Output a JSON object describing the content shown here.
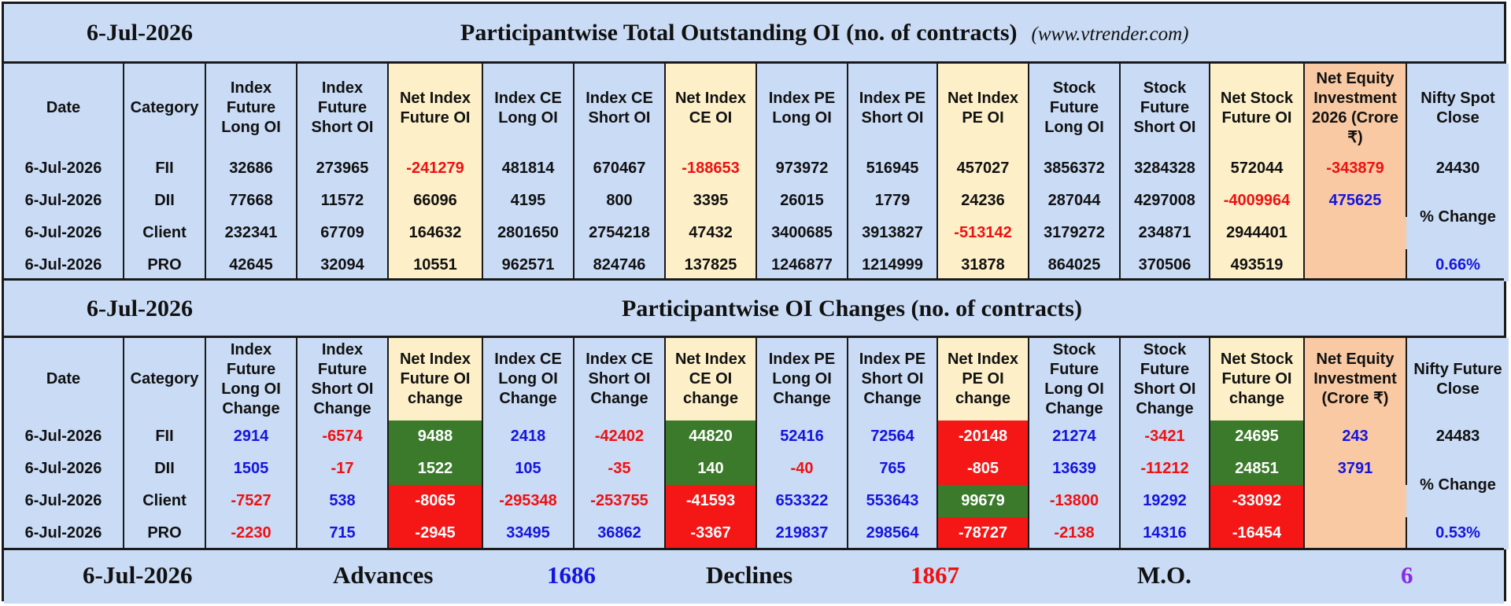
{
  "top": {
    "date": "6-Jul-2026",
    "title": "Participantwise Total Outstanding OI (no. of contracts)",
    "site": "(www.vtrender.com)",
    "headers": [
      "Date",
      "Category",
      "Index Future Long OI",
      "Index Future Short OI",
      "Net Index Future OI",
      "Index CE Long OI",
      "Index CE Short OI",
      "Net Index CE OI",
      "Index PE Long OI",
      "Index PE Short OI",
      "Net Index PE OI",
      "Stock Future Long OI",
      "Stock Future Short OI",
      "Net Stock Future OI",
      "Net Equity Investment 2026 (Crore ₹)",
      "Nifty Spot Close"
    ],
    "rows": [
      {
        "date": "6-Jul-2026",
        "category": "FII",
        "cells": [
          "32686",
          "273965",
          "-241279",
          "481814",
          "670467",
          "-188653",
          "973972",
          "516945",
          "457027",
          "3856372",
          "3284328",
          "572044"
        ],
        "equity": "-343879"
      },
      {
        "date": "6-Jul-2026",
        "category": "DII",
        "cells": [
          "77668",
          "11572",
          "66096",
          "4195",
          "800",
          "3395",
          "26015",
          "1779",
          "24236",
          "287044",
          "4297008",
          "-4009964"
        ],
        "equity": "475625"
      },
      {
        "date": "6-Jul-2026",
        "category": "Client",
        "cells": [
          "232341",
          "67709",
          "164632",
          "2801650",
          "2754218",
          "47432",
          "3400685",
          "3913827",
          "-513142",
          "3179272",
          "234871",
          "2944401"
        ],
        "equity": ""
      },
      {
        "date": "6-Jul-2026",
        "category": "PRO",
        "cells": [
          "42645",
          "32094",
          "10551",
          "962571",
          "824746",
          "137825",
          "1246877",
          "1214999",
          "31878",
          "864025",
          "370506",
          "493519"
        ],
        "equity": ""
      }
    ],
    "nifty_close": "24430",
    "pct_label": "% Change",
    "pct_value": "0.66%"
  },
  "changes": {
    "date": "6-Jul-2026",
    "title": "Participantwise OI Changes (no. of contracts)",
    "headers": [
      "Date",
      "Category",
      "Index Future Long OI Change",
      "Index Future Short OI Change",
      "Net Index Future OI change",
      "Index CE Long OI Change",
      "Index CE Short OI Change",
      "Net Index CE OI change",
      "Index PE Long OI Change",
      "Index PE Short OI Change",
      "Net Index PE OI change",
      "Stock Future Long OI Change",
      "Stock Future Short OI Change",
      "Net Stock Future OI change",
      "Net Equity Investment (Crore ₹)",
      "Nifty Future Close"
    ],
    "rows": [
      {
        "date": "6-Jul-2026",
        "category": "FII",
        "cells": [
          "2914",
          "-6574",
          "9488",
          "2418",
          "-42402",
          "44820",
          "52416",
          "72564",
          "-20148",
          "21274",
          "-3421",
          "24695"
        ],
        "equity": "243"
      },
      {
        "date": "6-Jul-2026",
        "category": "DII",
        "cells": [
          "1505",
          "-17",
          "1522",
          "105",
          "-35",
          "140",
          "-40",
          "765",
          "-805",
          "13639",
          "-11212",
          "24851"
        ],
        "equity": "3791"
      },
      {
        "date": "6-Jul-2026",
        "category": "Client",
        "cells": [
          "-7527",
          "538",
          "-8065",
          "-295348",
          "-253755",
          "-41593",
          "653322",
          "553643",
          "99679",
          "-13800",
          "19292",
          "-33092"
        ],
        "equity": ""
      },
      {
        "date": "6-Jul-2026",
        "category": "PRO",
        "cells": [
          "-2230",
          "715",
          "-2945",
          "33495",
          "36862",
          "-3367",
          "219837",
          "298564",
          "-78727",
          "-2138",
          "14316",
          "-16454"
        ],
        "equity": ""
      }
    ],
    "nifty_close": "24483",
    "pct_label": "% Change",
    "pct_value": "0.53%"
  },
  "footer": {
    "date": "6-Jul-2026",
    "advances_label": "Advances",
    "advances_value": "1686",
    "declines_label": "Declines",
    "declines_value": "1867",
    "mo_label": "M.O.",
    "mo_value": "6"
  },
  "colors": {
    "header_band": "#c9dbf5",
    "net_column_bg": "#fdf0c8",
    "equity_column_bg": "#f8c9a2",
    "positive_text": "#1515dd",
    "negative_text": "#ee1111",
    "positive_fill": "#3a7a2a",
    "negative_fill": "#f51616",
    "mo_color": "#8a2be2"
  }
}
